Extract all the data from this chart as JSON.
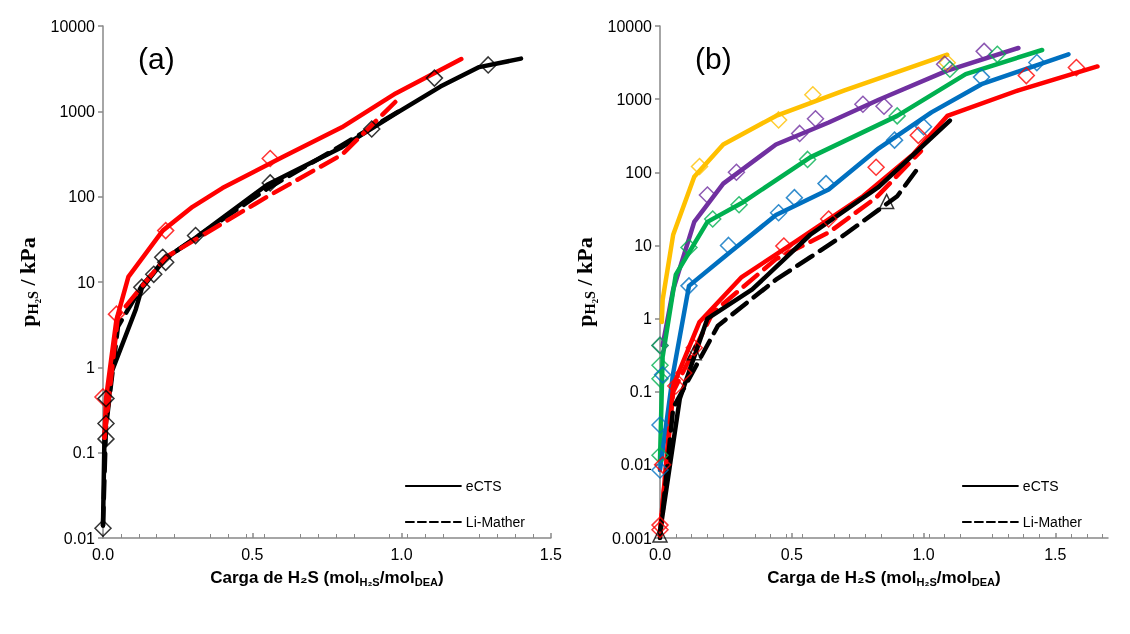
{
  "chart_data": [
    {
      "type": "line",
      "title": "(a)",
      "xlabel": "Carga de H₂S (mol$_{H₂S}$/mol$_{DEA}$)",
      "ylabel": "p$_{H₂S}$ / kPa",
      "log": "y",
      "grid": false,
      "legend": "bottom right",
      "xlim": [
        0,
        1.5
      ],
      "xticks": [
        {
          "value": 0,
          "label": "0.0"
        },
        {
          "value": 0.5,
          "label": "0.5"
        },
        {
          "value": 1,
          "label": "1.0"
        },
        {
          "value": 1.5,
          "label": "1.5"
        }
      ],
      "ylim": [
        0.01,
        10000
      ],
      "yticks": [
        0.01,
        0.1,
        1,
        10,
        100,
        1000,
        10000
      ],
      "series": [
        {
          "name": "eCTS",
          "type": "line",
          "color": "#000000",
          "line_style": "solid",
          "marker": "none",
          "x": [
            0,
            0.005,
            0.03,
            0.11,
            0.13,
            0.21,
            0.31,
            0.55,
            0.8,
            0.98,
            1.13,
            1.26,
            1.4
          ],
          "values": [
            0.014,
            0.16,
            0.9,
            4.8,
            8.5,
            19,
            33,
            138,
            380,
            940,
            1950,
            3300,
            4150
          ]
        },
        {
          "name": "Li-Mather",
          "type": "line",
          "color": "#000000",
          "line_style": "dashed",
          "marker": "none",
          "x": [
            0,
            0.01,
            0.05,
            0.13,
            0.21,
            0.31,
            0.55,
            0.8,
            0.99
          ],
          "values": [
            0.014,
            0.2,
            3,
            9,
            19,
            33,
            124,
            400,
            1000
          ]
        },
        {
          "type": "line",
          "color": "#ff0000",
          "line_style": "solid",
          "marker": "none",
          "x": [
            0.005,
            0.01,
            0.045,
            0.085,
            0.2,
            0.3,
            0.4,
            0.6,
            0.8,
            0.98,
            1.2
          ],
          "values": [
            0.15,
            0.43,
            3.6,
            11.5,
            40,
            76,
            126,
            290,
            650,
            1620,
            4100
          ]
        },
        {
          "type": "line",
          "color": "#ff0000",
          "line_style": "dashed",
          "marker": "none",
          "x": [
            0.005,
            0.05,
            0.21,
            0.55,
            0.8,
            0.98
          ],
          "values": [
            0.15,
            4,
            19.5,
            100,
            310,
            1300
          ]
        },
        {
          "type": "scatter",
          "color": "#ff0000",
          "marker": "diamond",
          "x": [
            0,
            0.045,
            0.21,
            0.56
          ],
          "values": [
            0.45,
            4.2,
            40,
            280
          ]
        },
        {
          "type": "scatter",
          "color": "#000000",
          "marker": "diamond",
          "x": [
            0,
            0.01,
            0.01,
            0.01,
            0.13,
            0.17,
            0.2,
            0.21,
            0.31,
            0.56,
            0.9,
            1.11,
            1.29
          ],
          "values": [
            0.013,
            0.145,
            0.22,
            0.43,
            8.7,
            12.3,
            19.5,
            17,
            35,
            145,
            620,
            2450,
            3500
          ]
        }
      ]
    },
    {
      "type": "line",
      "title": "(b)",
      "xlabel": "Carga de H₂S (mol$_{H₂S}$/mol$_{DEA}$)",
      "ylabel": "p$_{H₂S}$ / kPa",
      "log": "y",
      "grid": false,
      "legend": "bottom right",
      "xlim": [
        0,
        1.7
      ],
      "xticks": [
        {
          "value": 0,
          "label": "0.0"
        },
        {
          "value": 0.5,
          "label": "0.5"
        },
        {
          "value": 1,
          "label": "1.0"
        },
        {
          "value": 1.5,
          "label": "1.5"
        }
      ],
      "ylim": [
        0.001,
        10000
      ],
      "yticks": [
        0.001,
        0.01,
        0.1,
        1,
        10,
        100,
        1000,
        10000
      ],
      "series": [
        {
          "type": "line",
          "color": "#ffc000",
          "line_style": "solid",
          "marker": "none",
          "x": [
            0.007,
            0.01,
            0.05,
            0.13,
            0.24,
            0.44,
            0.7,
            1.09
          ],
          "values": [
            0.9,
            1.8,
            14,
            87,
            240,
            590,
            1320,
            4050
          ]
        },
        {
          "type": "line",
          "color": "#7030a0",
          "line_style": "solid",
          "marker": "none",
          "x": [
            0.01,
            0.05,
            0.13,
            0.24,
            0.44,
            0.64,
            0.83,
            1.09,
            1.36
          ],
          "values": [
            0.43,
            2.5,
            21,
            70,
            240,
            480,
            980,
            2450,
            5000
          ]
        },
        {
          "type": "line",
          "color": "#00b050",
          "line_style": "solid",
          "marker": "none",
          "x": [
            0,
            0.01,
            0.06,
            0.18,
            0.31,
            0.57,
            0.9,
            1.16,
            1.45
          ],
          "values": [
            0.0115,
            0.3,
            4,
            21,
            38,
            160,
            590,
            2200,
            4700
          ]
        },
        {
          "type": "line",
          "color": "#0070c0",
          "line_style": "solid",
          "marker": "none",
          "x": [
            0,
            0.05,
            0.11,
            0.24,
            0.44,
            0.64,
            0.83,
            1.03,
            1.22,
            1.55
          ],
          "values": [
            0.0085,
            0.18,
            2.8,
            6.8,
            26,
            58,
            213,
            660,
            1600,
            4100
          ]
        },
        {
          "type": "line",
          "color": "#ff0000",
          "line_style": "solid",
          "marker": "none",
          "x": [
            0,
            0.05,
            0.15,
            0.31,
            0.51,
            0.77,
            0.96,
            1.09,
            1.36,
            1.66
          ],
          "values": [
            0.0012,
            0.12,
            0.9,
            3.7,
            11,
            47,
            175,
            590,
            1320,
            2800
          ]
        },
        {
          "type": "line",
          "color": "#ff0000",
          "line_style": "dashed",
          "marker": "none",
          "x": [
            0,
            0.05,
            0.2,
            0.44,
            0.64,
            0.82,
            0.99
          ],
          "values": [
            0.0012,
            0.1,
            1.2,
            6.5,
            15,
            45,
            195
          ]
        },
        {
          "name": "eCTS",
          "type": "line",
          "color": "#000000",
          "line_style": "solid",
          "marker": "none",
          "x": [
            0,
            0.075,
            0.18,
            0.35,
            0.57,
            0.83,
            1.1
          ],
          "values": [
            0.0012,
            0.08,
            1,
            2.5,
            14,
            63,
            510
          ]
        },
        {
          "name": "Li-Mather",
          "type": "line",
          "color": "#000000",
          "line_style": "dashed",
          "marker": "none",
          "x": [
            0,
            0.05,
            0.22,
            0.44,
            0.7,
            0.9,
            0.99
          ],
          "values": [
            0.001,
            0.06,
            0.8,
            3.4,
            14,
            47,
            129
          ]
        },
        {
          "type": "scatter",
          "color": "#ffc000",
          "marker": "diamond",
          "x": [
            0.15,
            0.45,
            0.58,
            1.09
          ],
          "values": [
            120,
            520,
            1150,
            3150
          ]
        },
        {
          "type": "scatter",
          "color": "#7030a0",
          "marker": "diamond",
          "x": [
            0,
            0.18,
            0.29,
            0.53,
            0.59,
            0.77,
            0.85,
            1.08,
            1.23
          ],
          "values": [
            0.43,
            49,
            100,
            340,
            540,
            850,
            800,
            3000,
            4500
          ]
        },
        {
          "type": "scatter",
          "color": "#00b050",
          "marker": "diamond",
          "x": [
            0,
            0,
            0,
            0,
            0.11,
            0.2,
            0.3,
            0.56,
            0.9,
            1.1,
            1.28
          ],
          "values": [
            0.0135,
            0.15,
            0.23,
            0.43,
            9.4,
            23,
            36,
            150,
            590,
            2560,
            4100
          ]
        },
        {
          "type": "scatter",
          "color": "#0070c0",
          "marker": "diamond",
          "x": [
            0,
            0,
            0.01,
            0.11,
            0.26,
            0.45,
            0.51,
            0.63,
            0.89,
            1,
            1.22,
            1.43
          ],
          "values": [
            0.0085,
            0.035,
            0.17,
            2.8,
            10,
            28,
            45,
            70,
            275,
            420,
            2000,
            3160
          ]
        },
        {
          "type": "scatter",
          "color": "#ff0000",
          "marker": "diamond",
          "x": [
            0,
            0,
            0.01,
            0.06,
            0.09,
            0.13,
            0.47,
            0.64,
            0.82,
            0.98,
            1.39,
            1.58
          ],
          "values": [
            0.0013,
            0.0015,
            0.01,
            0.12,
            0.18,
            0.4,
            9.8,
            23,
            117,
            320,
            2100,
            2700
          ]
        },
        {
          "type": "scatter",
          "color": "#000000",
          "marker": "triangle",
          "x": [
            0,
            0.13,
            0.86
          ],
          "values": [
            0.0011,
            0.34,
            40
          ]
        }
      ]
    }
  ]
}
